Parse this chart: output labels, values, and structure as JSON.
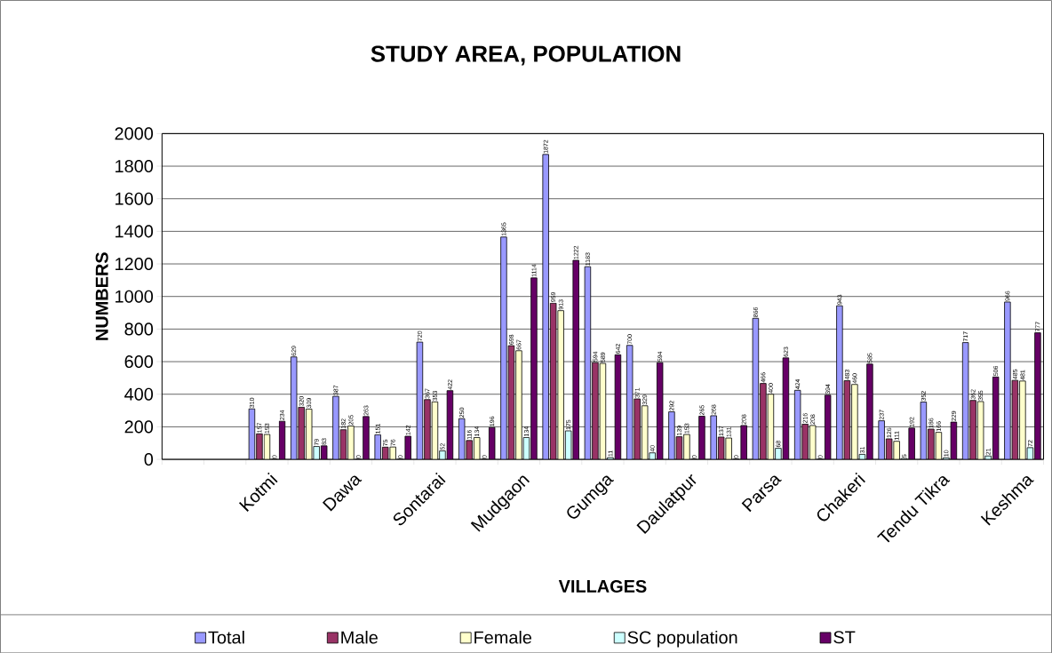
{
  "chart_data": {
    "type": "bar",
    "title": "STUDY AREA, POPULATION",
    "xlabel": "VILLAGES",
    "ylabel": "NUMBERS",
    "categories": [
      null,
      null,
      "Kotmi",
      null,
      "Dawa",
      null,
      "Sontarai",
      null,
      "Mudgaon",
      null,
      "Gumga",
      null,
      "Daulatpur",
      null,
      "Parsa",
      null,
      "Chakeri",
      null,
      "Tendu Tikra",
      null,
      "Keshma"
    ],
    "series": [
      {
        "name": "Total",
        "color": "#9999ff",
        "values": [
          null,
          null,
          310,
          629,
          387,
          151,
          720,
          250,
          1365,
          1872,
          1183,
          700,
          292,
          268,
          866,
          424,
          943,
          237,
          352,
          717,
          966
        ]
      },
      {
        "name": "Male",
        "color": "#993366",
        "values": [
          null,
          null,
          157,
          320,
          182,
          75,
          367,
          116,
          698,
          959,
          594,
          371,
          139,
          137,
          466,
          216,
          483,
          126,
          186,
          362,
          485
        ]
      },
      {
        "name": "Female",
        "color": "#ffffcc",
        "values": [
          null,
          null,
          153,
          309,
          205,
          76,
          353,
          134,
          667,
          913,
          589,
          329,
          153,
          131,
          400,
          208,
          460,
          111,
          166,
          355,
          481
        ]
      },
      {
        "name": "SC population",
        "color": "#ccffff",
        "values": [
          null,
          null,
          0,
          79,
          0,
          0,
          52,
          0,
          134,
          175,
          11,
          40,
          0,
          0,
          68,
          0,
          31,
          5,
          10,
          21,
          72
        ]
      },
      {
        "name": "ST",
        "color": "#660066",
        "values": [
          null,
          null,
          234,
          83,
          263,
          142,
          422,
          196,
          1114,
          1222,
          642,
          594,
          265,
          208,
          623,
          394,
          585,
          192,
          229,
          506,
          777
        ]
      }
    ],
    "ylim": [
      0,
      2000
    ],
    "yticks": [
      0,
      200,
      400,
      600,
      800,
      1000,
      1200,
      1400,
      1600,
      1800,
      2000
    ],
    "grid": "y",
    "legend": "bottom",
    "data_labels": true
  }
}
